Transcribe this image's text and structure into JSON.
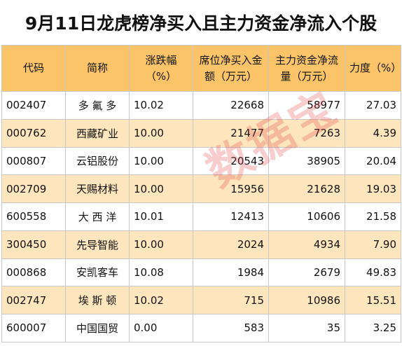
{
  "title": "9月11日龙虎榜净买入且主力资金净流入个股",
  "columns": [
    "代码",
    "简称",
    "涨跌幅（%）",
    "席位净买入金额（万元）",
    "主力资金净流量（万元）",
    "力度（%）"
  ],
  "rows": [
    {
      "code": "002407",
      "name": "多 氟 多",
      "change": "10.02",
      "seat_net_buy": "22668",
      "main_net_flow": "58977",
      "strength": "27.03"
    },
    {
      "code": "000762",
      "name": "西藏矿业",
      "change": "10.00",
      "seat_net_buy": "21477",
      "main_net_flow": "7263",
      "strength": "4.39"
    },
    {
      "code": "000807",
      "name": "云铝股份",
      "change": "10.00",
      "seat_net_buy": "20543",
      "main_net_flow": "38905",
      "strength": "20.04"
    },
    {
      "code": "002709",
      "name": "天赐材料",
      "change": "10.00",
      "seat_net_buy": "15956",
      "main_net_flow": "21628",
      "strength": "19.03"
    },
    {
      "code": "600558",
      "name": "大 西 洋",
      "change": "10.01",
      "seat_net_buy": "12413",
      "main_net_flow": "10606",
      "strength": "21.58"
    },
    {
      "code": "300450",
      "name": "先导智能",
      "change": "10.00",
      "seat_net_buy": "2024",
      "main_net_flow": "4934",
      "strength": "7.90"
    },
    {
      "code": "000868",
      "name": "安凯客车",
      "change": "10.08",
      "seat_net_buy": "1984",
      "main_net_flow": "2679",
      "strength": "49.83"
    },
    {
      "code": "002747",
      "name": "埃 斯 顿",
      "change": "10.02",
      "seat_net_buy": "715",
      "main_net_flow": "10986",
      "strength": "15.51"
    },
    {
      "code": "600007",
      "name": "中国国贸",
      "change": "0.00",
      "seat_net_buy": "583",
      "main_net_flow": "35",
      "strength": "3.25"
    }
  ],
  "watermark": "数据宝",
  "colors": {
    "header_bg": "#fbc469",
    "stripe_bg": "#fde6bd",
    "border": "#c8c8c8",
    "watermark": "#e13c3c"
  }
}
